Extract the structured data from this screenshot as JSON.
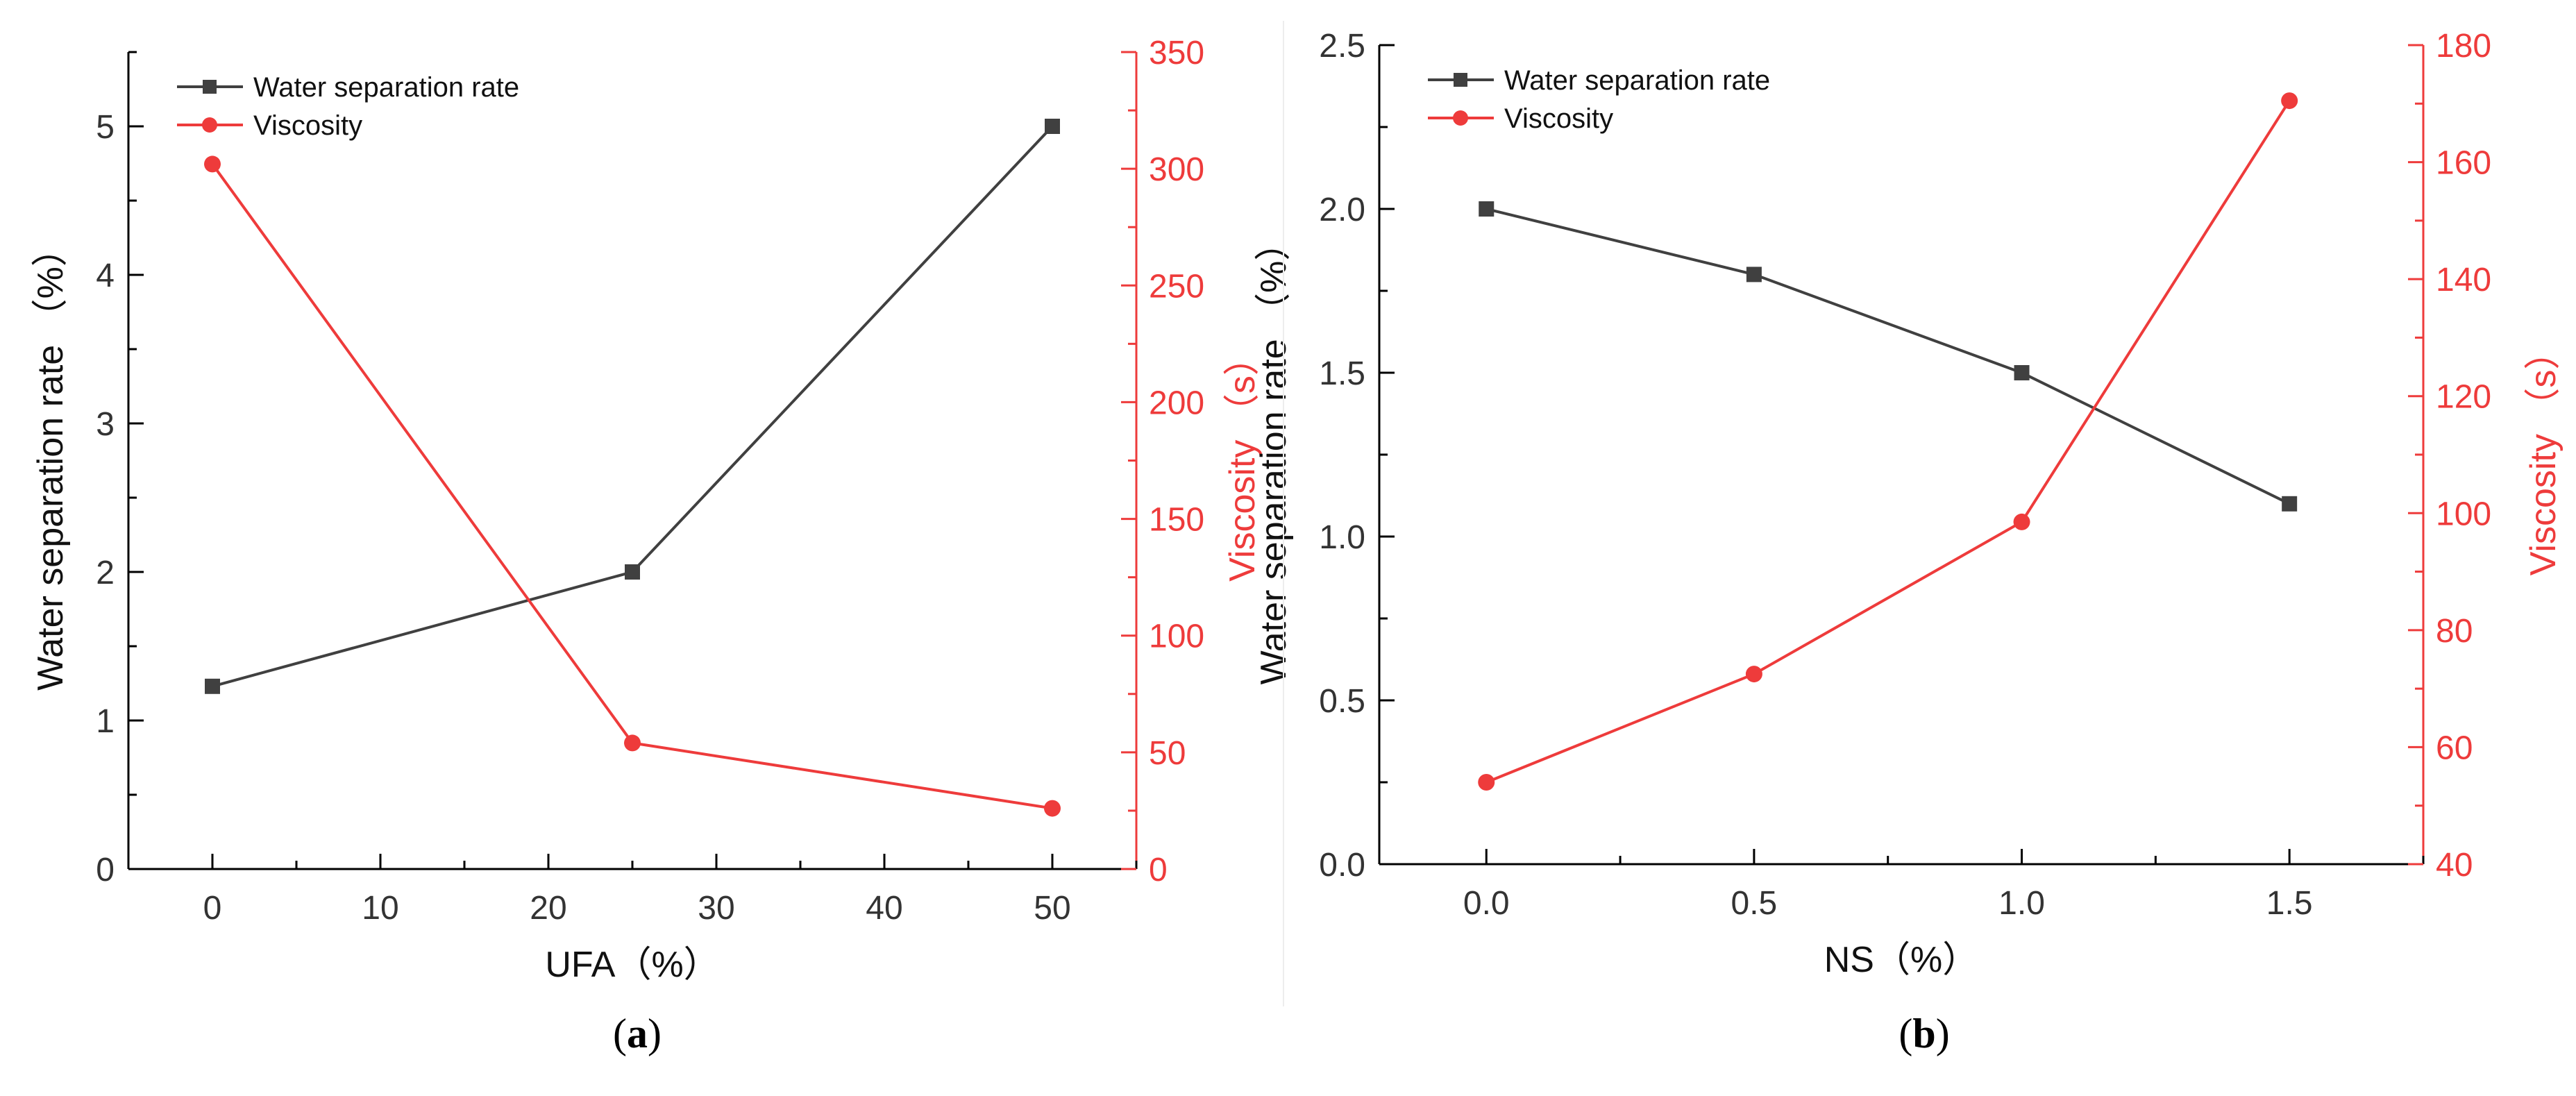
{
  "chart_data": [
    {
      "type": "line",
      "panel_label": "a",
      "xlabel": "UFA（%）",
      "ylabel_left": "Water separation rate （%）",
      "ylabel_right": "Viscosity （s）",
      "xlim": [
        -5,
        55
      ],
      "ylim_left": [
        0,
        5.5
      ],
      "ylim_right": [
        0,
        350
      ],
      "xticks": [
        0,
        10,
        20,
        30,
        40,
        50
      ],
      "yticks_left": [
        0,
        1,
        2,
        3,
        4,
        5
      ],
      "yticks_right": [
        0,
        50,
        100,
        150,
        200,
        250,
        300,
        350
      ],
      "legend_position": "top-left",
      "series": [
        {
          "name": "Water separation rate",
          "axis": "left",
          "color": "#404040",
          "marker": "square",
          "x": [
            0,
            25,
            50
          ],
          "values": [
            1.23,
            2.0,
            5.0
          ]
        },
        {
          "name": "Viscosity",
          "axis": "right",
          "color": "#ee3b3b",
          "marker": "circle",
          "x": [
            0,
            25,
            50
          ],
          "values": [
            302,
            54,
            26
          ]
        }
      ]
    },
    {
      "type": "line",
      "panel_label": "b",
      "xlabel": "NS（%）",
      "ylabel_left": "Water separation rate （%）",
      "ylabel_right": "Viscosity （s）",
      "xlim": [
        -0.2,
        1.75
      ],
      "ylim_left": [
        0,
        2.5
      ],
      "ylim_right": [
        40,
        180
      ],
      "xticks": [
        "0.0",
        "0.5",
        "1.0",
        "1.5"
      ],
      "yticks_left": [
        "0.0",
        "0.5",
        "1.0",
        "1.5",
        "2.0",
        "2.5"
      ],
      "yticks_right": [
        40,
        60,
        80,
        100,
        120,
        140,
        160,
        180
      ],
      "legend_position": "top-left",
      "series": [
        {
          "name": "Water separation rate",
          "axis": "left",
          "color": "#404040",
          "marker": "square",
          "x": [
            0,
            0.5,
            1.0,
            1.5
          ],
          "values": [
            2.0,
            1.8,
            1.5,
            1.1
          ]
        },
        {
          "name": "Viscosity",
          "axis": "right",
          "color": "#ee3b3b",
          "marker": "circle",
          "x": [
            0,
            0.5,
            1.0,
            1.5
          ],
          "values": [
            54,
            72.5,
            98.5,
            170.5
          ]
        }
      ]
    }
  ]
}
